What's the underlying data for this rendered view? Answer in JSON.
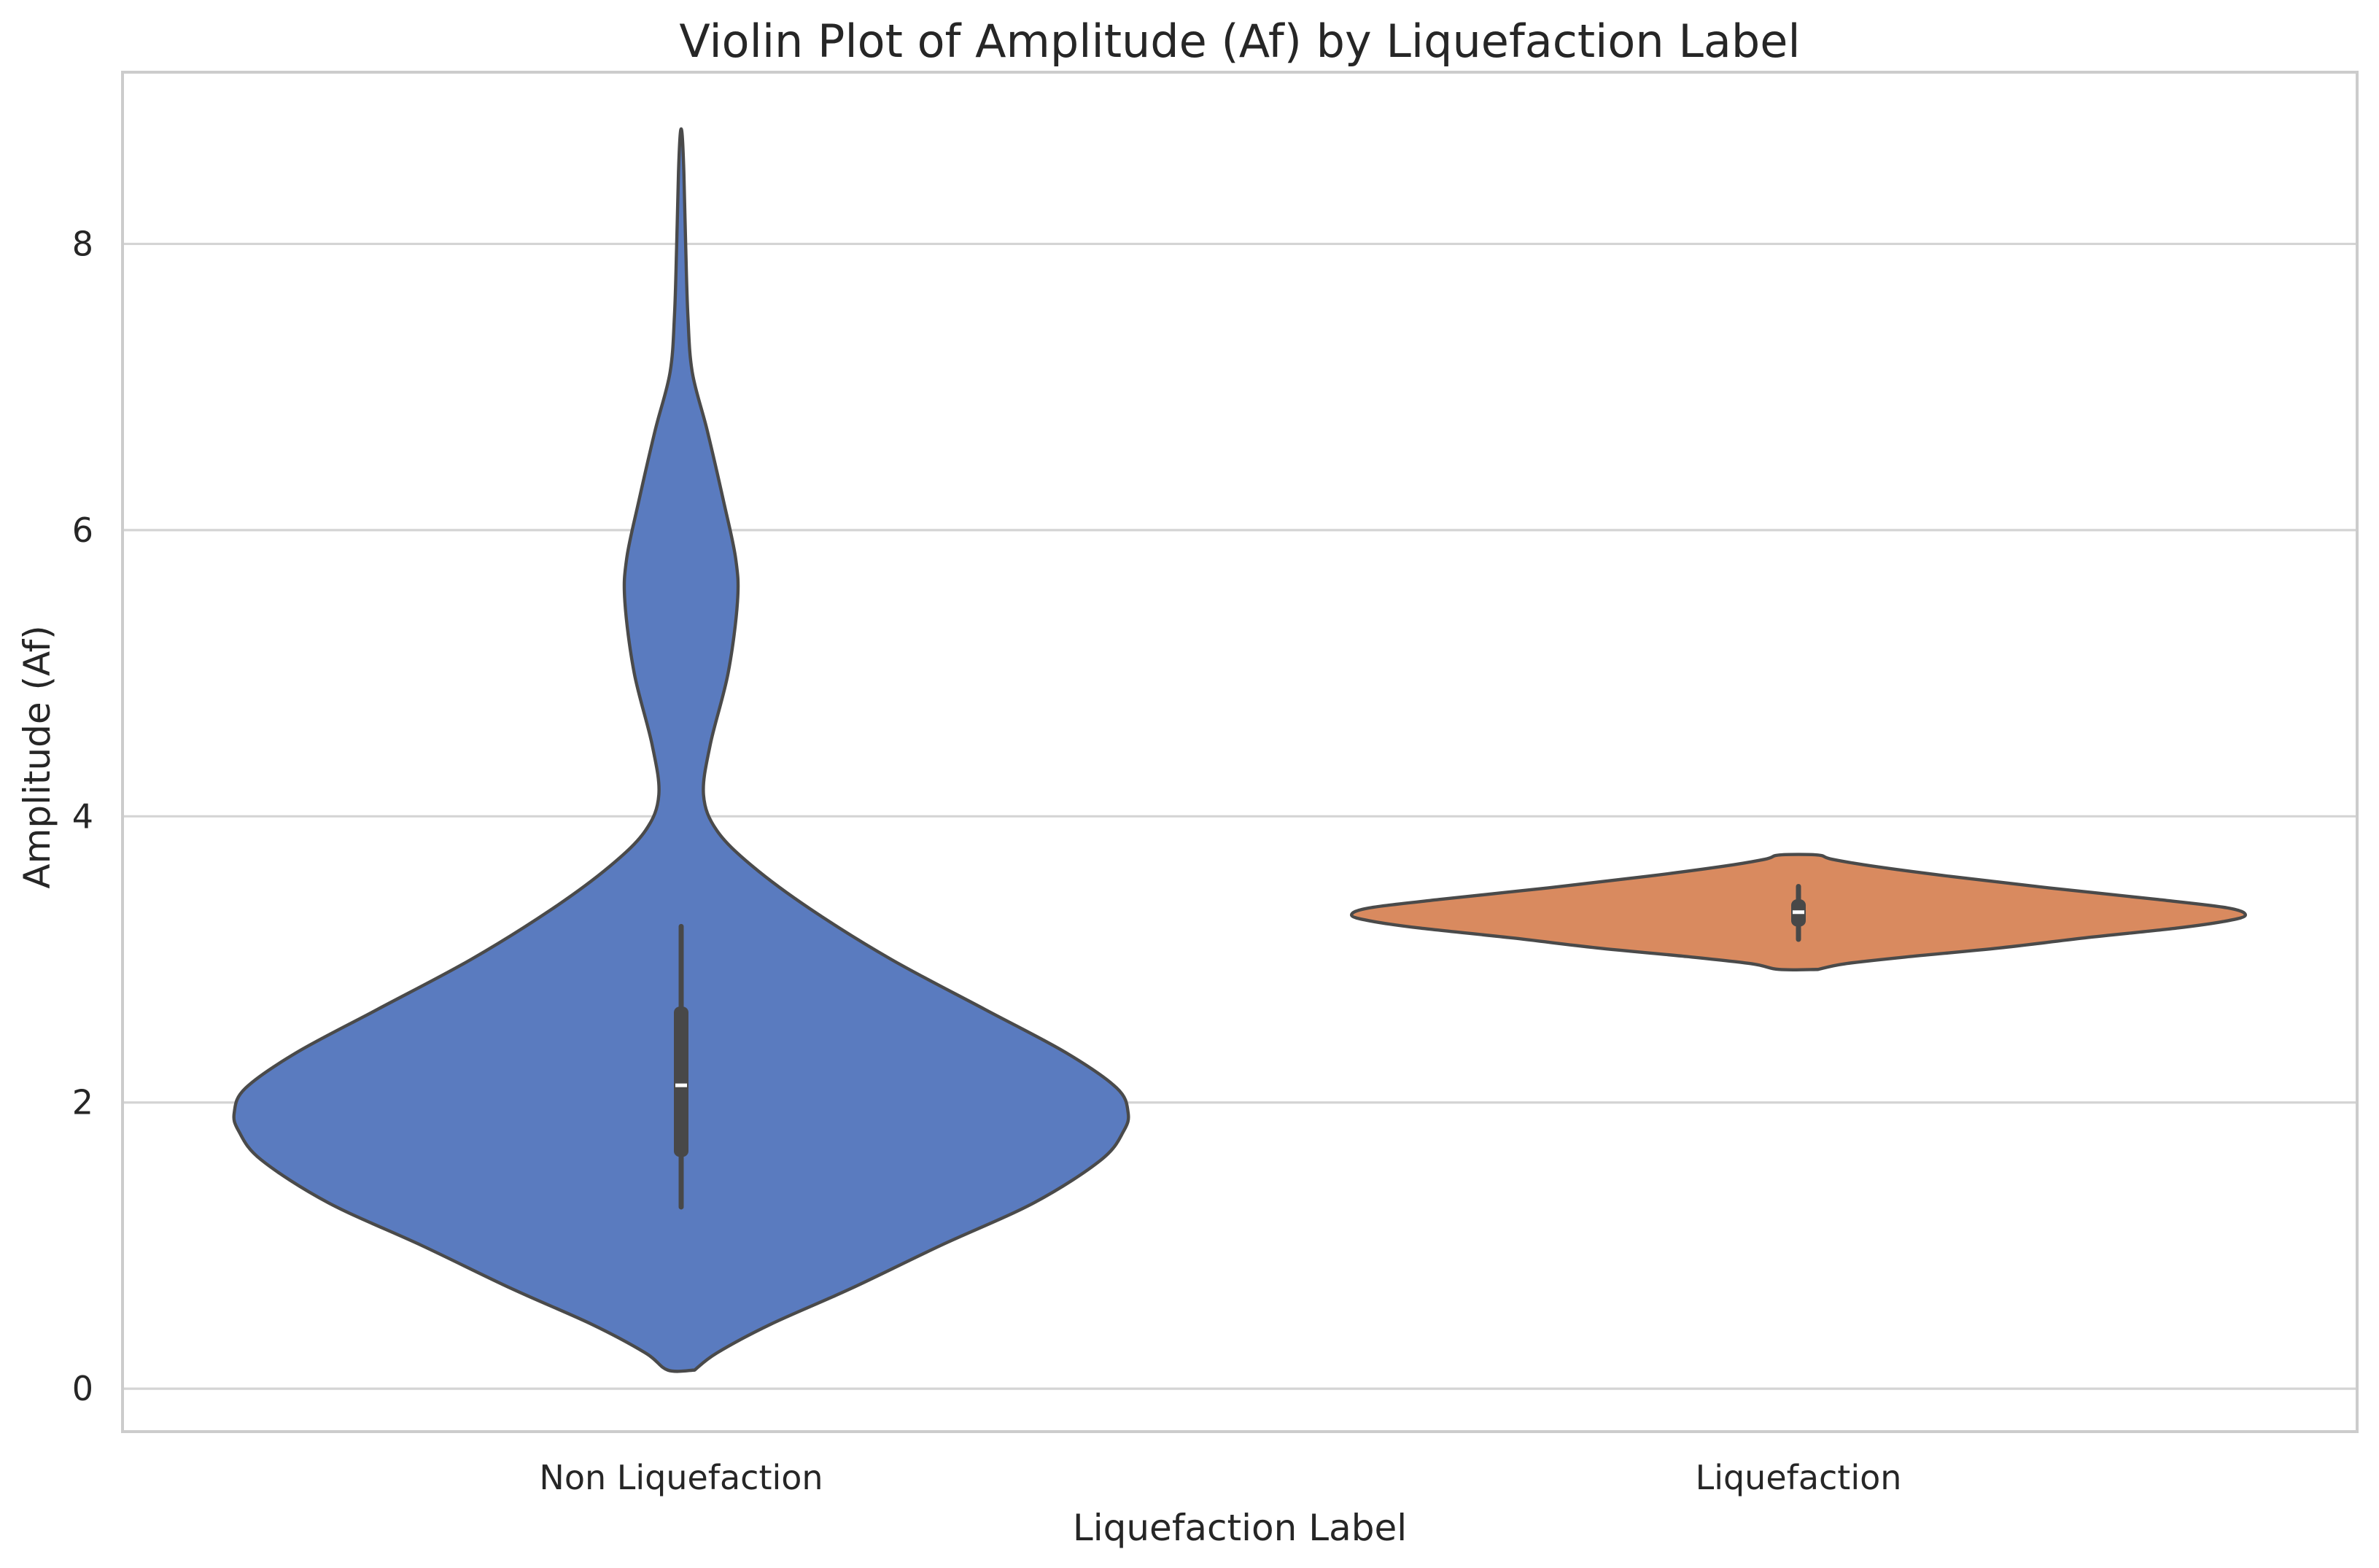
{
  "chart_data": {
    "type": "violin",
    "title": "Violin Plot of Amplitude (Af) by Liquefaction Label",
    "xlabel": "Liquefaction Label",
    "ylabel": "Amplitude (Af)",
    "categories": [
      "Non Liquefaction",
      "Liquefaction"
    ],
    "ylim": [
      -0.3,
      9.2
    ],
    "yticks": [
      0,
      2,
      4,
      6,
      8
    ],
    "ytick_labels": [
      "0",
      "2",
      "4",
      "6",
      "8"
    ],
    "grid": true,
    "legend": "none",
    "violins": [
      {
        "category": "Non Liquefaction",
        "color": "#5a7bbf",
        "min": 0.13,
        "max": 8.77,
        "whisker_low": 1.27,
        "q1": 1.62,
        "median": 2.12,
        "q3": 2.67,
        "whisker_high": 3.23,
        "density_profile": [
          {
            "y": 0.13,
            "w": 0.03
          },
          {
            "y": 0.25,
            "w": 0.08
          },
          {
            "y": 0.45,
            "w": 0.2
          },
          {
            "y": 0.7,
            "w": 0.38
          },
          {
            "y": 1.0,
            "w": 0.58
          },
          {
            "y": 1.3,
            "w": 0.79
          },
          {
            "y": 1.6,
            "w": 0.94
          },
          {
            "y": 1.8,
            "w": 0.99
          },
          {
            "y": 1.93,
            "w": 1.0
          },
          {
            "y": 2.1,
            "w": 0.975
          },
          {
            "y": 2.35,
            "w": 0.86
          },
          {
            "y": 2.65,
            "w": 0.68
          },
          {
            "y": 3.0,
            "w": 0.47
          },
          {
            "y": 3.35,
            "w": 0.29
          },
          {
            "y": 3.65,
            "w": 0.16
          },
          {
            "y": 3.9,
            "w": 0.08
          },
          {
            "y": 4.15,
            "w": 0.05
          },
          {
            "y": 4.5,
            "w": 0.065
          },
          {
            "y": 5.0,
            "w": 0.105
          },
          {
            "y": 5.5,
            "w": 0.126
          },
          {
            "y": 5.8,
            "w": 0.122
          },
          {
            "y": 6.2,
            "w": 0.095
          },
          {
            "y": 6.7,
            "w": 0.058
          },
          {
            "y": 7.1,
            "w": 0.025
          },
          {
            "y": 7.5,
            "w": 0.015
          },
          {
            "y": 8.0,
            "w": 0.01
          },
          {
            "y": 8.5,
            "w": 0.006
          },
          {
            "y": 8.77,
            "w": 0.002
          }
        ]
      },
      {
        "category": "Liquefaction",
        "color": "#d98a5f",
        "min": 2.93,
        "max": 3.73,
        "whisker_low": 3.14,
        "q1": 3.23,
        "median": 3.33,
        "q3": 3.42,
        "whisker_high": 3.51,
        "density_profile": [
          {
            "y": 2.93,
            "w": 0.044
          },
          {
            "y": 2.97,
            "w": 0.105
          },
          {
            "y": 3.02,
            "w": 0.25
          },
          {
            "y": 3.08,
            "w": 0.45
          },
          {
            "y": 3.15,
            "w": 0.64
          },
          {
            "y": 3.22,
            "w": 0.85
          },
          {
            "y": 3.27,
            "w": 0.96
          },
          {
            "y": 3.31,
            "w": 1.0
          },
          {
            "y": 3.36,
            "w": 0.96
          },
          {
            "y": 3.42,
            "w": 0.8
          },
          {
            "y": 3.5,
            "w": 0.56
          },
          {
            "y": 3.58,
            "w": 0.34
          },
          {
            "y": 3.65,
            "w": 0.17
          },
          {
            "y": 3.7,
            "w": 0.075
          },
          {
            "y": 3.73,
            "w": 0.042
          }
        ]
      }
    ]
  }
}
